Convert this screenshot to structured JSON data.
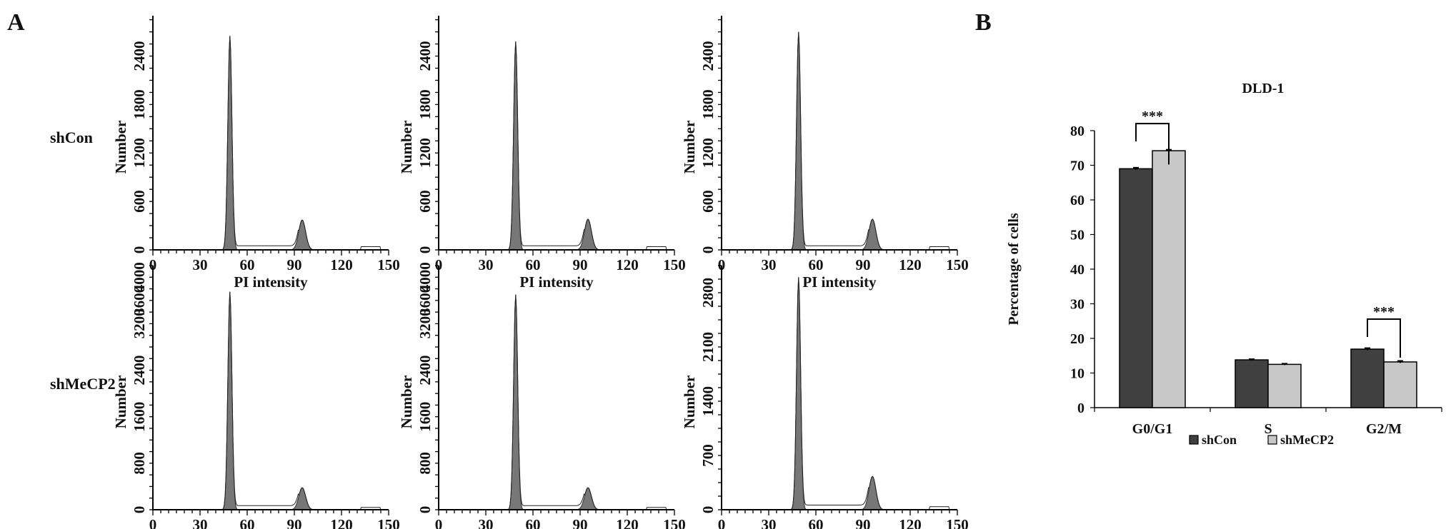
{
  "panel_labels": {
    "a": "A",
    "b": "B"
  },
  "row_labels": [
    "shCon",
    "shMeCP2"
  ],
  "chart_data": [
    {
      "type": "area",
      "title": "",
      "xlabel": "PI intensity",
      "ylabel": "Number",
      "row": 0,
      "col": 0,
      "xlim": [
        0,
        150
      ],
      "xticks": [
        0,
        30,
        60,
        90,
        120,
        150
      ],
      "yticks": [
        0,
        600,
        1200,
        1800,
        2400
      ],
      "ylim": [
        0,
        2900
      ],
      "g1_peak": {
        "x": 49,
        "y": 2650
      },
      "g2_peak": {
        "x": 95,
        "y": 370
      },
      "s_level": 50
    },
    {
      "type": "area",
      "title": "",
      "xlabel": "PI intensity",
      "ylabel": "Number",
      "row": 0,
      "col": 1,
      "xlim": [
        0,
        150
      ],
      "xticks": [
        0,
        30,
        60,
        90,
        120,
        150
      ],
      "yticks": [
        0,
        600,
        1200,
        1800,
        2400
      ],
      "ylim": [
        0,
        2900
      ],
      "g1_peak": {
        "x": 49,
        "y": 2580
      },
      "g2_peak": {
        "x": 95,
        "y": 380
      },
      "s_level": 50
    },
    {
      "type": "area",
      "title": "",
      "xlabel": "PI intensity",
      "ylabel": "Number",
      "row": 0,
      "col": 2,
      "xlim": [
        0,
        150
      ],
      "xticks": [
        0,
        30,
        60,
        90,
        120,
        150
      ],
      "yticks": [
        0,
        600,
        1200,
        1800,
        2400
      ],
      "ylim": [
        0,
        2900
      ],
      "g1_peak": {
        "x": 49,
        "y": 2700
      },
      "g2_peak": {
        "x": 96,
        "y": 380
      },
      "s_level": 50
    },
    {
      "type": "area",
      "title": "",
      "xlabel": "PI intensity",
      "ylabel": "Number",
      "row": 1,
      "col": 0,
      "xlim": [
        0,
        150
      ],
      "xticks": [
        0,
        30,
        60,
        90,
        120,
        150
      ],
      "yticks": [
        0,
        800,
        1600,
        2400,
        3200,
        3600,
        4000
      ],
      "ylim": [
        0,
        4200
      ],
      "g1_peak": {
        "x": 49,
        "y": 3750
      },
      "g2_peak": {
        "x": 95,
        "y": 380
      },
      "s_level": 70
    },
    {
      "type": "area",
      "title": "",
      "xlabel": "PI intensity",
      "ylabel": "Number",
      "row": 1,
      "col": 1,
      "xlim": [
        0,
        150
      ],
      "xticks": [
        0,
        30,
        60,
        90,
        120,
        150
      ],
      "yticks": [
        0,
        800,
        1600,
        2400,
        3200,
        3600,
        4000
      ],
      "ylim": [
        0,
        4200
      ],
      "g1_peak": {
        "x": 49,
        "y": 3700
      },
      "g2_peak": {
        "x": 95,
        "y": 380
      },
      "s_level": 70
    },
    {
      "type": "area",
      "title": "",
      "xlabel": "PI intensity",
      "ylabel": "Number",
      "row": 1,
      "col": 2,
      "xlim": [
        0,
        150
      ],
      "xticks": [
        0,
        30,
        60,
        90,
        120,
        150
      ],
      "yticks": [
        0,
        700,
        1400,
        2100,
        2800
      ],
      "ylim": [
        0,
        3150
      ],
      "g1_peak": {
        "x": 49,
        "y": 3000
      },
      "g2_peak": {
        "x": 96,
        "y": 430
      },
      "s_level": 60
    },
    {
      "type": "bar",
      "title": "DLD-1",
      "xlabel": "",
      "ylabel": "Percentage of cells",
      "categories": [
        "G0/G1",
        "S",
        "G2/M"
      ],
      "ylim": [
        0,
        80
      ],
      "yticks": [
        0,
        10,
        20,
        30,
        40,
        50,
        60,
        70,
        80
      ],
      "series": [
        {
          "name": "shCon",
          "color": "#404040",
          "values": [
            69.0,
            13.8,
            16.9
          ],
          "errors": [
            0.3,
            0.2,
            0.3
          ]
        },
        {
          "name": "shMeCP2",
          "color": "#c8c8c8",
          "values": [
            74.2,
            12.5,
            13.2
          ],
          "errors": [
            0.3,
            0.2,
            0.3
          ]
        }
      ],
      "significance": [
        {
          "category": "G0/G1",
          "label": "***"
        },
        {
          "category": "G2/M",
          "label": "***"
        }
      ],
      "legend": "bottom"
    }
  ]
}
